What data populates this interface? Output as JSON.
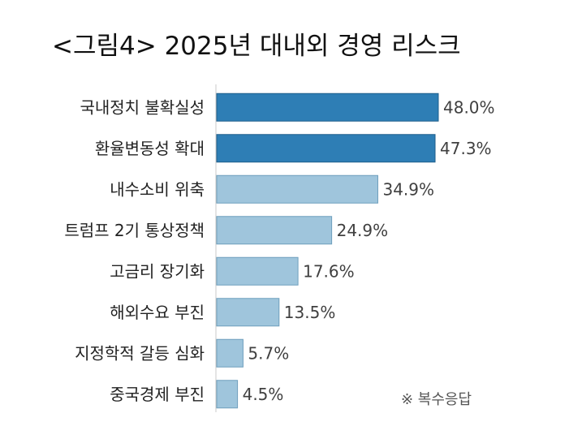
{
  "chart_data": {
    "type": "bar",
    "orientation": "horizontal",
    "title": "<그림4> 2025년 대내외 경영 리스크",
    "categories": [
      "국내정치 불확실성",
      "환율변동성 확대",
      "내수소비 위축",
      "트럼프 2기 통상정책",
      "고금리 장기화",
      "해외수요 부진",
      "지정학적 갈등 심화",
      "중국경제 부진"
    ],
    "values": [
      48.0,
      47.3,
      34.9,
      24.9,
      17.6,
      13.5,
      5.7,
      4.5
    ],
    "value_labels": [
      "48.0%",
      "47.3%",
      "34.9%",
      "24.9%",
      "17.6%",
      "13.5%",
      "5.7%",
      "4.5%"
    ],
    "highlight_count": 2,
    "colors": {
      "highlight": "#2E7EB5",
      "highlight_stroke": "#1F5F8B",
      "normal": "#9FC5DC",
      "normal_stroke": "#6F9FBD",
      "axis": "#C8C8C8"
    },
    "xlim": [
      0,
      48.0
    ],
    "grid": false,
    "legend": "none",
    "note": "※ 복수응답"
  }
}
